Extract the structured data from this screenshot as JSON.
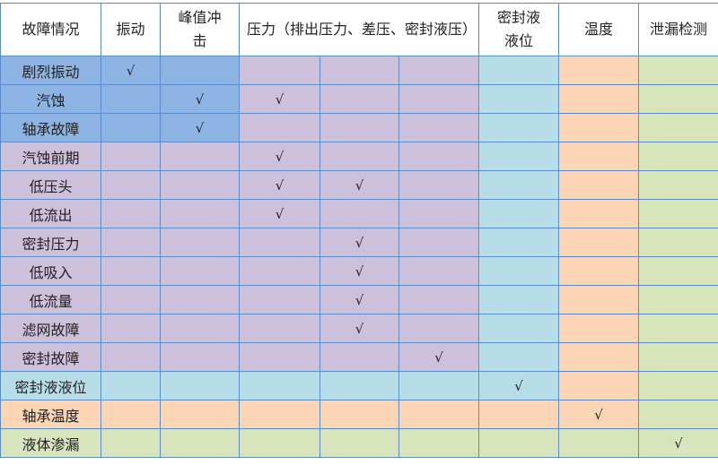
{
  "colors": {
    "vibration": "#8eb4e3",
    "pressure": "#ccc0da",
    "seal_level": "#b7dee8",
    "temperature": "#fcd5b4",
    "leak": "#d8e4bc",
    "header": "#ffffff",
    "border": "#5b8bc9"
  },
  "header": {
    "fault": "故障情况",
    "vibration": "振动",
    "peak_impact": "峰值冲击",
    "pressure": "压力（排出压力、差压、密封液压）",
    "seal_level": "密封液液位",
    "temperature": "温度",
    "leak": "泄漏检测"
  },
  "check_mark": "√",
  "rows": [
    {
      "label": "剧烈振动",
      "group": "vibration",
      "checks": [
        1,
        0,
        0,
        0,
        0,
        0,
        0,
        0
      ]
    },
    {
      "label": "汽蚀",
      "group": "vibration",
      "checks": [
        0,
        1,
        1,
        0,
        0,
        0,
        0,
        0
      ]
    },
    {
      "label": "轴承故障",
      "group": "vibration",
      "checks": [
        0,
        1,
        0,
        0,
        0,
        0,
        0,
        0
      ]
    },
    {
      "label": "汽蚀前期",
      "group": "pressure",
      "checks": [
        0,
        0,
        1,
        0,
        0,
        0,
        0,
        0
      ]
    },
    {
      "label": "低压头",
      "group": "pressure",
      "checks": [
        0,
        0,
        1,
        1,
        0,
        0,
        0,
        0
      ]
    },
    {
      "label": "低流出",
      "group": "pressure",
      "checks": [
        0,
        0,
        1,
        0,
        0,
        0,
        0,
        0
      ]
    },
    {
      "label": "密封压力",
      "group": "pressure",
      "checks": [
        0,
        0,
        0,
        1,
        0,
        0,
        0,
        0
      ]
    },
    {
      "label": "低吸入",
      "group": "pressure",
      "checks": [
        0,
        0,
        0,
        1,
        0,
        0,
        0,
        0
      ]
    },
    {
      "label": "低流量",
      "group": "pressure",
      "checks": [
        0,
        0,
        0,
        1,
        0,
        0,
        0,
        0
      ]
    },
    {
      "label": "滤网故障",
      "group": "pressure",
      "checks": [
        0,
        0,
        0,
        1,
        0,
        0,
        0,
        0
      ]
    },
    {
      "label": "密封故障",
      "group": "pressure",
      "checks": [
        0,
        0,
        0,
        0,
        1,
        0,
        0,
        0
      ]
    },
    {
      "label": "密封液液位",
      "group": "seal_level",
      "checks": [
        0,
        0,
        0,
        0,
        0,
        1,
        0,
        0
      ]
    },
    {
      "label": "轴承温度",
      "group": "temperature",
      "checks": [
        0,
        0,
        0,
        0,
        0,
        0,
        1,
        0
      ]
    },
    {
      "label": "液体渗漏",
      "group": "leak",
      "checks": [
        0,
        0,
        0,
        0,
        0,
        0,
        0,
        1
      ]
    }
  ]
}
